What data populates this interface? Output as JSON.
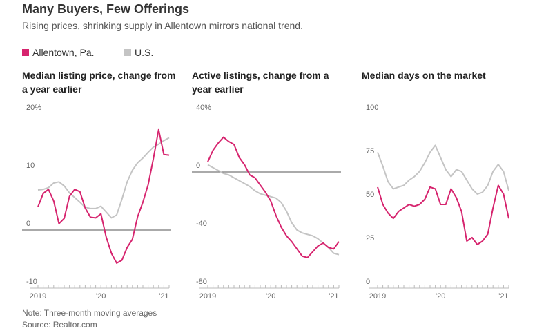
{
  "title": "Many Buyers, Few Offerings",
  "subtitle": "Rising prices, shrinking supply in Allentown mirrors national trend.",
  "note": "Note: Three-month moving averages",
  "source": "Source: Realtor.com",
  "chart_data": [
    {
      "type": "line",
      "title": "Median listing price, change from a year earlier",
      "categories": [
        "2019",
        null,
        null,
        null,
        null,
        null,
        null,
        null,
        null,
        null,
        null,
        null,
        "'20",
        null,
        null,
        null,
        null,
        null,
        null,
        null,
        null,
        null,
        null,
        null,
        "'21",
        null
      ],
      "series": [
        {
          "name": "Allentown, Pa.",
          "color": "#d6246e",
          "values": [
            4,
            6.3,
            7,
            5,
            1.1,
            2,
            5.8,
            7,
            6.6,
            3.8,
            2.2,
            2.1,
            2.8,
            -1.2,
            -4,
            -5.7,
            -5.2,
            -3,
            -1.6,
            2.3,
            4.8,
            7.8,
            12.3,
            17.3,
            13,
            12.9
          ]
        },
        {
          "name": "U.S.",
          "color": "#c4c4c4",
          "values": [
            6.9,
            7,
            7.3,
            8.1,
            8.3,
            7.6,
            6.4,
            5.6,
            4.8,
            3.9,
            3.7,
            3.7,
            4.1,
            3.1,
            2.1,
            2.6,
            5.3,
            8.3,
            10.3,
            11.6,
            12.4,
            13.4,
            14.3,
            14.8,
            15.4,
            15.9
          ]
        }
      ],
      "ylim": [
        -10,
        20
      ],
      "yticks": [
        {
          "value": 20,
          "label": "20%"
        },
        10,
        0,
        -10
      ]
    },
    {
      "type": "line",
      "title": "Active listings, change from a year earlier",
      "categories": [
        "2019",
        null,
        null,
        null,
        null,
        null,
        null,
        null,
        null,
        null,
        null,
        null,
        "'20",
        null,
        null,
        null,
        null,
        null,
        null,
        null,
        null,
        null,
        null,
        null,
        "'21",
        null
      ],
      "series": [
        {
          "name": "Allentown, Pa.",
          "color": "#d6246e",
          "values": [
            7,
            15,
            20,
            24,
            21,
            19,
            10,
            5,
            -2,
            -4,
            -9,
            -14,
            -20,
            -30,
            -38,
            -44,
            -48,
            -53,
            -58,
            -59,
            -55,
            -51,
            -49,
            -52,
            -53,
            -48
          ]
        },
        {
          "name": "U.S.",
          "color": "#c4c4c4",
          "values": [
            5,
            3,
            1,
            -1,
            -2,
            -4,
            -6,
            -8,
            -10,
            -13,
            -15,
            -16,
            -17,
            -18,
            -21,
            -27,
            -35,
            -40,
            -42,
            -43,
            -44,
            -46,
            -49,
            -52,
            -56,
            -57
          ]
        }
      ],
      "ylim": [
        -80,
        40
      ],
      "yticks": [
        {
          "value": 40,
          "label": "40%"
        },
        0,
        -40,
        -80
      ]
    },
    {
      "type": "line",
      "title": "Median days on the market",
      "categories": [
        "2019",
        null,
        null,
        null,
        null,
        null,
        null,
        null,
        null,
        null,
        null,
        null,
        "'20",
        null,
        null,
        null,
        null,
        null,
        null,
        null,
        null,
        null,
        null,
        null,
        "'21",
        null
      ],
      "series": [
        {
          "name": "Allentown, Pa.",
          "color": "#d6246e",
          "values": [
            58,
            48,
            43,
            40,
            44,
            46,
            48,
            47,
            48,
            51,
            58,
            57,
            48,
            48,
            57,
            52,
            44,
            27,
            29,
            25,
            27,
            31,
            46,
            59,
            54,
            40
          ]
        },
        {
          "name": "U.S.",
          "color": "#c4c4c4",
          "values": [
            78,
            70,
            61,
            57,
            58,
            59,
            62,
            64,
            67,
            72,
            78,
            82,
            75,
            68,
            64,
            68,
            67,
            62,
            57,
            54,
            55,
            59,
            67,
            71,
            67,
            56
          ]
        }
      ],
      "ylim": [
        0,
        100
      ],
      "yticks": [
        100,
        75,
        50,
        25,
        0
      ]
    }
  ]
}
